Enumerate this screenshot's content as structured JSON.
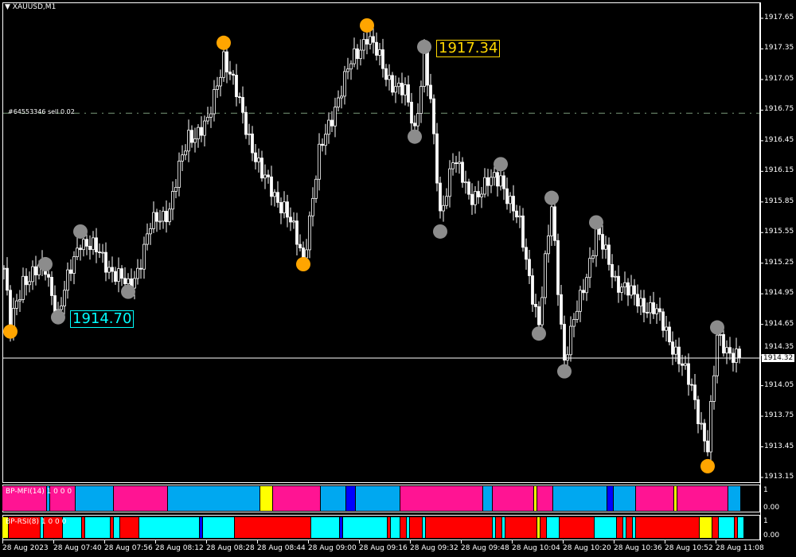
{
  "window": {
    "symbol": "XAUUSD,M1",
    "menu_icon": "triangle-down-icon"
  },
  "order_line": {
    "label": "#64553346 sell 0.02",
    "color": "#7a9a7a"
  },
  "current_price": "1914.32",
  "callouts": [
    {
      "text": "1914.70",
      "color": "#00ffff",
      "time": "07:41"
    },
    {
      "text": "1917.34",
      "color": "#ffd700",
      "time": "09:36"
    }
  ],
  "indicators": [
    {
      "label": "BP-MFI(14) 1 0 0 0",
      "scale_top": "1",
      "scale_bottom": "0.00",
      "segments": [
        [
          "pink",
          14
        ],
        [
          "blue",
          1
        ],
        [
          "pink",
          8
        ],
        [
          "blue",
          12
        ],
        [
          "pink",
          17
        ],
        [
          "blue",
          29
        ],
        [
          "yellow",
          4
        ],
        [
          "pink",
          15
        ],
        [
          "blue",
          8
        ],
        [
          "darkblue",
          3
        ],
        [
          "blue",
          14
        ],
        [
          "pink",
          26
        ],
        [
          "blue",
          3
        ],
        [
          "pink",
          13
        ],
        [
          "yellow",
          1
        ],
        [
          "pink",
          5
        ],
        [
          "blue",
          17
        ],
        [
          "darkblue",
          2
        ],
        [
          "blue",
          7
        ],
        [
          "pink",
          12
        ],
        [
          "yellow",
          1
        ],
        [
          "pink",
          16
        ],
        [
          "blue",
          4
        ]
      ]
    },
    {
      "label": "BP-RSI(8) 1 0 0 0",
      "scale_top": "1",
      "scale_bottom": "0.00",
      "segments": [
        [
          "yellow",
          2
        ],
        [
          "red",
          10
        ],
        [
          "cyan",
          1
        ],
        [
          "red",
          6
        ],
        [
          "cyan",
          6
        ],
        [
          "red",
          1
        ],
        [
          "cyan",
          8
        ],
        [
          "red",
          1
        ],
        [
          "cyan",
          2
        ],
        [
          "red",
          6
        ],
        [
          "cyan",
          19
        ],
        [
          "darkblue",
          1
        ],
        [
          "cyan",
          10
        ],
        [
          "red",
          24
        ],
        [
          "cyan",
          9
        ],
        [
          "darkblue",
          1
        ],
        [
          "cyan",
          14
        ],
        [
          "red",
          1
        ],
        [
          "cyan",
          3
        ],
        [
          "red",
          2
        ],
        [
          "cyan",
          1
        ],
        [
          "red",
          4
        ],
        [
          "cyan",
          1
        ],
        [
          "red",
          21
        ],
        [
          "cyan",
          1
        ],
        [
          "red",
          2
        ],
        [
          "cyan",
          1
        ],
        [
          "red",
          10
        ],
        [
          "yellow",
          1
        ],
        [
          "red",
          2
        ],
        [
          "cyan",
          4
        ],
        [
          "red",
          11
        ],
        [
          "cyan",
          7
        ],
        [
          "red",
          2
        ],
        [
          "cyan",
          1
        ],
        [
          "red",
          2
        ],
        [
          "cyan",
          1
        ],
        [
          "red",
          20
        ],
        [
          "yellow",
          4
        ],
        [
          "red",
          2
        ],
        [
          "cyan",
          5
        ],
        [
          "red",
          1
        ],
        [
          "cyan",
          2
        ]
      ]
    }
  ],
  "colors": {
    "pink": "#ff1493",
    "blue": "#00a8f0",
    "darkblue": "#0000ff",
    "yellow": "#ffff00",
    "red": "#ff0000",
    "cyan": "#00ffff",
    "marker_grey": "#8c8c8c",
    "marker_orange": "#ffa500"
  },
  "chart_data": {
    "type": "candlestick",
    "symbol": "XAUUSD",
    "timeframe": "M1",
    "start_time": "07:24",
    "end_time": "11:15",
    "ylim": [
      1913.15,
      1917.65
    ],
    "y_ticks": [
      "1917.65",
      "1917.35",
      "1917.05",
      "1916.75",
      "1916.45",
      "1916.15",
      "1915.85",
      "1915.55",
      "1915.25",
      "1914.95",
      "1914.65",
      "1914.35",
      "1914.05",
      "1913.75",
      "1913.45",
      "1913.15"
    ],
    "x_ticks": [
      "28 Aug 2023",
      "28 Aug 07:40",
      "28 Aug 07:56",
      "28 Aug 08:12",
      "28 Aug 08:28",
      "28 Aug 08:44",
      "28 Aug 09:00",
      "28 Aug 09:16",
      "28 Aug 09:32",
      "28 Aug 09:48",
      "28 Aug 10:04",
      "28 Aug 10:20",
      "28 Aug 10:36",
      "28 Aug 10:52",
      "28 Aug 11:08"
    ],
    "order_price": 1916.72,
    "price_path": [
      [
        "07:24",
        1915.2
      ],
      [
        "07:26",
        1914.6
      ],
      [
        "07:30",
        1915.1
      ],
      [
        "07:37",
        1915.2
      ],
      [
        "07:41",
        1914.75
      ],
      [
        "07:48",
        1915.5
      ],
      [
        "07:55",
        1915.3
      ],
      [
        "08:03",
        1915.0
      ],
      [
        "08:06",
        1915.2
      ],
      [
        "08:10",
        1915.6
      ],
      [
        "08:16",
        1915.8
      ],
      [
        "08:22",
        1916.5
      ],
      [
        "08:28",
        1916.6
      ],
      [
        "08:33",
        1917.3
      ],
      [
        "08:38",
        1916.8
      ],
      [
        "08:45",
        1916.1
      ],
      [
        "08:52",
        1915.8
      ],
      [
        "08:58",
        1915.3
      ],
      [
        "09:03",
        1916.3
      ],
      [
        "09:08",
        1916.8
      ],
      [
        "09:13",
        1917.2
      ],
      [
        "09:18",
        1917.5
      ],
      [
        "09:24",
        1917.1
      ],
      [
        "09:30",
        1916.9
      ],
      [
        "09:33",
        1916.55
      ],
      [
        "09:36",
        1917.3
      ],
      [
        "09:38",
        1916.8
      ],
      [
        "09:41",
        1915.7
      ],
      [
        "09:45",
        1916.3
      ],
      [
        "09:50",
        1915.9
      ],
      [
        "10:00",
        1916.1
      ],
      [
        "10:06",
        1915.6
      ],
      [
        "10:12",
        1914.65
      ],
      [
        "10:16",
        1915.8
      ],
      [
        "10:20",
        1914.3
      ],
      [
        "10:25",
        1914.9
      ],
      [
        "10:30",
        1915.55
      ],
      [
        "10:36",
        1915.1
      ],
      [
        "10:42",
        1914.9
      ],
      [
        "10:48",
        1914.8
      ],
      [
        "10:55",
        1914.4
      ],
      [
        "11:00",
        1914.0
      ],
      [
        "11:05",
        1913.45
      ],
      [
        "11:08",
        1914.5
      ],
      [
        "11:12",
        1914.4
      ],
      [
        "11:15",
        1914.32
      ]
    ],
    "swing_markers": [
      {
        "time": "07:26",
        "price": 1914.58,
        "color": "orange"
      },
      {
        "time": "07:37",
        "price": 1915.24,
        "color": "grey"
      },
      {
        "time": "07:41",
        "price": 1914.72,
        "color": "grey"
      },
      {
        "time": "07:48",
        "price": 1915.56,
        "color": "grey"
      },
      {
        "time": "08:03",
        "price": 1914.97,
        "color": "grey"
      },
      {
        "time": "08:33",
        "price": 1917.41,
        "color": "orange"
      },
      {
        "time": "08:58",
        "price": 1915.24,
        "color": "orange"
      },
      {
        "time": "09:18",
        "price": 1917.58,
        "color": "orange"
      },
      {
        "time": "09:33",
        "price": 1916.49,
        "color": "grey"
      },
      {
        "time": "09:36",
        "price": 1917.37,
        "color": "grey"
      },
      {
        "time": "09:41",
        "price": 1915.56,
        "color": "grey"
      },
      {
        "time": "10:00",
        "price": 1916.22,
        "color": "grey"
      },
      {
        "time": "10:12",
        "price": 1914.56,
        "color": "grey"
      },
      {
        "time": "10:16",
        "price": 1915.89,
        "color": "grey"
      },
      {
        "time": "10:20",
        "price": 1914.19,
        "color": "grey"
      },
      {
        "time": "10:30",
        "price": 1915.65,
        "color": "grey"
      },
      {
        "time": "11:05",
        "price": 1913.26,
        "color": "orange"
      },
      {
        "time": "11:08",
        "price": 1914.62,
        "color": "grey"
      }
    ]
  }
}
